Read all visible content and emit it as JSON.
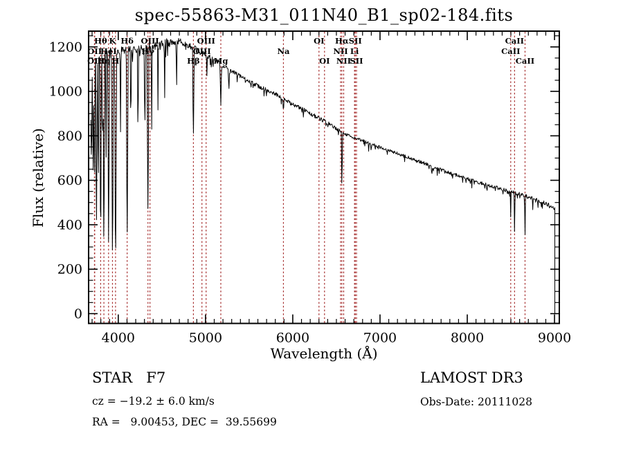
{
  "title": "spec-55863-M31_011N40_B1_sp02-184.fits",
  "footer": {
    "class_type": "STAR   F7",
    "cz": "cz = −19.2 ± 6.0 km/s",
    "radec": "RA =   9.00453, DEC =  39.55699",
    "survey": "LAMOST DR3",
    "obs_date": "Obs-Date: 20111028"
  },
  "chart_data": {
    "type": "line",
    "title": "spec-55863-M31_011N40_B1_sp02-184.fits",
    "xlabel": "Wavelength (Å)",
    "ylabel": "Flux (relative)",
    "xlim": [
      3660,
      9055
    ],
    "ylim": [
      -44,
      1271
    ],
    "x_major_ticks": [
      4000,
      5000,
      6000,
      7000,
      8000,
      9000
    ],
    "x_minor_step": 100,
    "y_major_ticks": [
      0,
      200,
      400,
      600,
      800,
      1000,
      1200
    ],
    "y_minor_step": 50,
    "grid": false,
    "legend": false,
    "background_color": "#ffffff",
    "trace_color": "#000000",
    "marker_color": "#a83232",
    "spectral_line_markers": [
      {
        "label": "OII",
        "wavelength": 3727.1,
        "row": 3
      },
      {
        "label": "OII",
        "wavelength": 3729.9,
        "row": 2
      },
      {
        "label": "Hθ",
        "wavelength": 3798.0,
        "row": 1
      },
      {
        "label": "Hη",
        "wavelength": 3835.4,
        "row": 3
      },
      {
        "label": "HeI",
        "wavelength": 3888.6,
        "row": 2
      },
      {
        "label": "K",
        "wavelength": 3933.7,
        "row": 1
      },
      {
        "label": "H",
        "wavelength": 3968.5,
        "row": 3
      },
      {
        "label": "Hδ",
        "wavelength": 4101.7,
        "row": 1
      },
      {
        "label": "Hγ",
        "wavelength": 4340.5,
        "row": 2
      },
      {
        "label": "OIII",
        "wavelength": 4363.2,
        "row": 1
      },
      {
        "label": "Hβ",
        "wavelength": 4861.3,
        "row": 3
      },
      {
        "label": "OIII",
        "wavelength": 4958.9,
        "row": 2
      },
      {
        "label": "OIII",
        "wavelength": 5006.8,
        "row": 1
      },
      {
        "label": "Mg",
        "wavelength": 5175.4,
        "row": 3
      },
      {
        "label": "Na",
        "wavelength": 5893.0,
        "row": 2
      },
      {
        "label": "OI",
        "wavelength": 6300.3,
        "row": 1
      },
      {
        "label": "OI",
        "wavelength": 6363.8,
        "row": 3
      },
      {
        "label": "NII",
        "wavelength": 6548.1,
        "row": 2
      },
      {
        "label": "Hα",
        "wavelength": 6562.8,
        "row": 1
      },
      {
        "label": "NII",
        "wavelength": 6583.5,
        "row": 3
      },
      {
        "label": "Li",
        "wavelength": 6707.8,
        "row": 2
      },
      {
        "label": "SII",
        "wavelength": 6716.4,
        "row": 1
      },
      {
        "label": "SII",
        "wavelength": 6730.8,
        "row": 3
      },
      {
        "label": "CaII",
        "wavelength": 8498.0,
        "row": 2
      },
      {
        "label": "CaII",
        "wavelength": 8542.1,
        "row": 1
      },
      {
        "label": "CaII",
        "wavelength": 8662.1,
        "row": 3
      }
    ],
    "spectrum": {
      "start_wavelength": 3685,
      "end_wavelength": 9005,
      "sample_step": 5.5,
      "seed": 42,
      "ends_at_zero": true,
      "continuum": [
        [
          3685,
          1000
        ],
        [
          3700,
          1090
        ],
        [
          3750,
          1130
        ],
        [
          3800,
          1150
        ],
        [
          3850,
          1160
        ],
        [
          3900,
          1170
        ],
        [
          3960,
          1175
        ],
        [
          4000,
          1180
        ],
        [
          4100,
          1185
        ],
        [
          4200,
          1190
        ],
        [
          4300,
          1185
        ],
        [
          4400,
          1200
        ],
        [
          4500,
          1210
        ],
        [
          4600,
          1220
        ],
        [
          4700,
          1225
        ],
        [
          4800,
          1210
        ],
        [
          4861,
          1195
        ],
        [
          4950,
          1175
        ],
        [
          5000,
          1165
        ],
        [
          5100,
          1140
        ],
        [
          5175,
          1120
        ],
        [
          5250,
          1100
        ],
        [
          5350,
          1080
        ],
        [
          5450,
          1055
        ],
        [
          5550,
          1035
        ],
        [
          5650,
          1015
        ],
        [
          5750,
          998
        ],
        [
          5850,
          978
        ],
        [
          5950,
          952
        ],
        [
          6050,
          932
        ],
        [
          6150,
          912
        ],
        [
          6250,
          890
        ],
        [
          6350,
          868
        ],
        [
          6450,
          846
        ],
        [
          6500,
          830
        ],
        [
          6563,
          818
        ],
        [
          6620,
          805
        ],
        [
          6700,
          792
        ],
        [
          6800,
          778
        ],
        [
          6900,
          763
        ],
        [
          7000,
          748
        ],
        [
          7100,
          734
        ],
        [
          7200,
          720
        ],
        [
          7300,
          706
        ],
        [
          7400,
          692
        ],
        [
          7500,
          678
        ],
        [
          7600,
          660
        ],
        [
          7700,
          648
        ],
        [
          7800,
          634
        ],
        [
          7900,
          620
        ],
        [
          8000,
          607
        ],
        [
          8100,
          594
        ],
        [
          8200,
          582
        ],
        [
          8300,
          570
        ],
        [
          8400,
          560
        ],
        [
          8500,
          548
        ],
        [
          8600,
          538
        ],
        [
          8700,
          525
        ],
        [
          8800,
          512
        ],
        [
          8900,
          497
        ],
        [
          9000,
          473
        ],
        [
          9005,
          470
        ]
      ],
      "absorption_features": [
        {
          "wavelength": 3692,
          "min_flux": 700,
          "half_width": 10
        },
        {
          "wavelength": 3712,
          "min_flux": 640,
          "half_width": 8
        },
        {
          "wavelength": 3727,
          "min_flux": 560,
          "half_width": 7
        },
        {
          "wavelength": 3750,
          "min_flux": 400,
          "half_width": 9
        },
        {
          "wavelength": 3771,
          "min_flux": 560,
          "half_width": 7
        },
        {
          "wavelength": 3798,
          "min_flux": 330,
          "half_width": 9
        },
        {
          "wavelength": 3820,
          "min_flux": 720,
          "half_width": 6
        },
        {
          "wavelength": 3835,
          "min_flux": 300,
          "half_width": 9
        },
        {
          "wavelength": 3860,
          "min_flux": 680,
          "half_width": 6
        },
        {
          "wavelength": 3889,
          "min_flux": 315,
          "half_width": 9
        },
        {
          "wavelength": 3934,
          "min_flux": 245,
          "half_width": 10
        },
        {
          "wavelength": 3969,
          "min_flux": 235,
          "half_width": 11
        },
        {
          "wavelength": 4026,
          "min_flux": 820,
          "half_width": 6
        },
        {
          "wavelength": 4102,
          "min_flux": 345,
          "half_width": 10
        },
        {
          "wavelength": 4144,
          "min_flux": 840,
          "half_width": 6
        },
        {
          "wavelength": 4226,
          "min_flux": 800,
          "half_width": 6
        },
        {
          "wavelength": 4305,
          "min_flux": 850,
          "half_width": 8
        },
        {
          "wavelength": 4340,
          "min_flux": 465,
          "half_width": 10
        },
        {
          "wavelength": 4383,
          "min_flux": 820,
          "half_width": 6
        },
        {
          "wavelength": 4455,
          "min_flux": 920,
          "half_width": 5
        },
        {
          "wavelength": 4531,
          "min_flux": 950,
          "half_width": 5
        },
        {
          "wavelength": 4668,
          "min_flux": 1000,
          "half_width": 5
        },
        {
          "wavelength": 4861,
          "min_flux": 800,
          "half_width": 9
        },
        {
          "wavelength": 5015,
          "min_flux": 1060,
          "half_width": 5
        },
        {
          "wavelength": 5175,
          "min_flux": 935,
          "half_width": 8
        },
        {
          "wavelength": 5270,
          "min_flux": 1010,
          "half_width": 5
        },
        {
          "wavelength": 5893,
          "min_flux": 915,
          "half_width": 7
        },
        {
          "wavelength": 6122,
          "min_flux": 880,
          "half_width": 4
        },
        {
          "wavelength": 6563,
          "min_flux": 570,
          "half_width": 7
        },
        {
          "wavelength": 6870,
          "min_flux": 730,
          "half_width": 6
        },
        {
          "wavelength": 7594,
          "min_flux": 625,
          "half_width": 7
        },
        {
          "wavelength": 8226,
          "min_flux": 545,
          "half_width": 5
        },
        {
          "wavelength": 8498,
          "min_flux": 430,
          "half_width": 5
        },
        {
          "wavelength": 8542,
          "min_flux": 370,
          "half_width": 6
        },
        {
          "wavelength": 8662,
          "min_flux": 355,
          "half_width": 6
        },
        {
          "wavelength": 8750,
          "min_flux": 470,
          "half_width": 5
        }
      ],
      "noise_levels": [
        [
          3685,
          32
        ],
        [
          4000,
          22
        ],
        [
          4600,
          14
        ],
        [
          5300,
          9
        ],
        [
          6600,
          7
        ],
        [
          7500,
          8
        ],
        [
          8800,
          9
        ]
      ]
    }
  }
}
